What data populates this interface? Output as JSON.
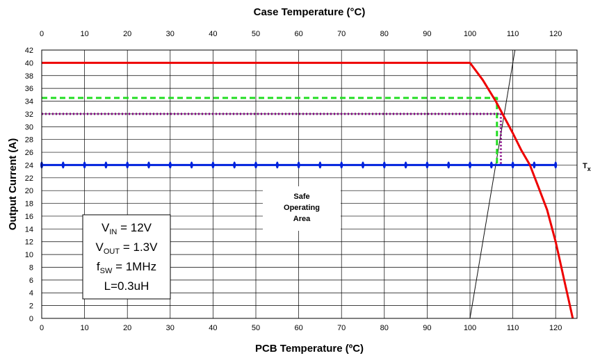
{
  "chart_data": {
    "type": "line",
    "title": "Case Temperature (°C)",
    "xlabel": "PCB Temperature (ºC)",
    "ylabel": "Output Current (A)",
    "x_range": [
      0,
      125
    ],
    "y_range": [
      0,
      42
    ],
    "x_ticks": [
      0,
      10,
      20,
      30,
      40,
      50,
      60,
      70,
      80,
      90,
      100,
      110,
      120
    ],
    "y_ticks": [
      0,
      2,
      4,
      6,
      8,
      10,
      12,
      14,
      16,
      18,
      20,
      22,
      24,
      26,
      28,
      30,
      32,
      34,
      36,
      38,
      40,
      42
    ],
    "x_tick_labels": [
      "0",
      "10",
      "20",
      "30",
      "40",
      "50",
      "60",
      "70",
      "80",
      "90",
      "100",
      "110",
      "120"
    ],
    "y_tick_labels": [
      "0",
      "2",
      "4",
      "6",
      "8",
      "10",
      "12",
      "14",
      "16",
      "18",
      "20",
      "22",
      "24",
      "26",
      "28",
      "30",
      "32",
      "34",
      "36",
      "38",
      "40",
      "42"
    ],
    "top_tick_labels": [
      "0",
      "10",
      "20",
      "30",
      "40",
      "50",
      "60",
      "70",
      "80",
      "90",
      "100",
      "110",
      "120"
    ],
    "grid": true,
    "legend": "none",
    "series": [
      {
        "color": "#ee0000",
        "style": "solid",
        "x": [
          0,
          100,
          103,
          106,
          108,
          110,
          112,
          114,
          116,
          118,
          120,
          121,
          122,
          123,
          124
        ],
        "y": [
          40,
          40,
          37.3,
          34,
          31.5,
          29,
          26.3,
          24,
          20.5,
          17,
          12,
          9,
          6,
          3,
          0
        ]
      },
      {
        "color": "#111111",
        "style": "thin",
        "x": [
          100,
          110.5
        ],
        "y": [
          0,
          42
        ]
      },
      {
        "color": "#0022dd",
        "style": "solid-markers",
        "x": [
          0,
          5,
          10,
          15,
          20,
          25,
          30,
          35,
          40,
          45,
          50,
          55,
          60,
          65,
          70,
          75,
          80,
          85,
          90,
          95,
          100,
          105,
          110,
          115,
          120
        ],
        "y": [
          24,
          24,
          24,
          24,
          24,
          24,
          24,
          24,
          24,
          24,
          24,
          24,
          24,
          24,
          24,
          24,
          24,
          24,
          24,
          24,
          24,
          24,
          24,
          24,
          24
        ]
      },
      {
        "color": "#22dd22",
        "style": "dashed",
        "x": [
          0,
          106.3,
          106.3
        ],
        "y": [
          34.5,
          34.5,
          24
        ]
      },
      {
        "color": "#800080",
        "style": "dotted",
        "x": [
          0,
          107.2,
          107.2
        ],
        "y": [
          32,
          32,
          24
        ]
      }
    ],
    "annotations": {
      "region_label": [
        "Safe",
        "Operating",
        "Area"
      ],
      "right_label": "T",
      "right_label_sub": "x",
      "params": [
        {
          "main": "V",
          "sub": "IN",
          "rest": " = 12V"
        },
        {
          "main": "V",
          "sub": "OUT",
          "rest": " = 1.3V"
        },
        {
          "main": "f",
          "sub": "SW",
          "rest": " = 1MHz"
        },
        {
          "main": "L=0.3uH",
          "sub": "",
          "rest": ""
        }
      ]
    }
  }
}
